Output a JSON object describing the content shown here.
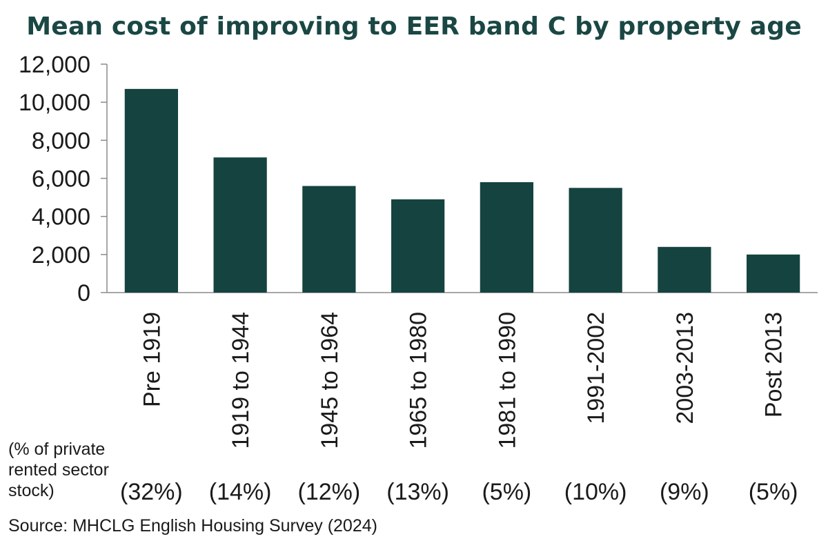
{
  "chart_data": {
    "type": "bar",
    "title": "Mean cost of improving to EER band C by property age",
    "categories": [
      "Pre 1919",
      "1919 to 1944",
      "1945 to 1964",
      "1965 to 1980",
      "1981 to 1990",
      "1991-2002",
      "2003-2013",
      "Post 2013"
    ],
    "values": [
      10700,
      7100,
      5600,
      4900,
      5800,
      5500,
      2400,
      2000
    ],
    "stock_share_labels": [
      "(32%)",
      "(14%)",
      "(12%)",
      "(13%)",
      "(5%)",
      "(10%)",
      "(9%)",
      "(5%)"
    ],
    "ylim": [
      0,
      12000
    ],
    "yticks": [
      0,
      2000,
      4000,
      6000,
      8000,
      10000,
      12000
    ],
    "ytick_labels": [
      "0",
      "2,000",
      "4,000",
      "6,000",
      "8,000",
      "10,000",
      "12,000"
    ],
    "xlabel": "",
    "ylabel": "",
    "bar_color": "#15433f",
    "grid": false,
    "legend": "none"
  },
  "notes": {
    "share_label": "(% of private rented sector stock)",
    "source": "Source: MHCLG English Housing Survey (2024)"
  }
}
